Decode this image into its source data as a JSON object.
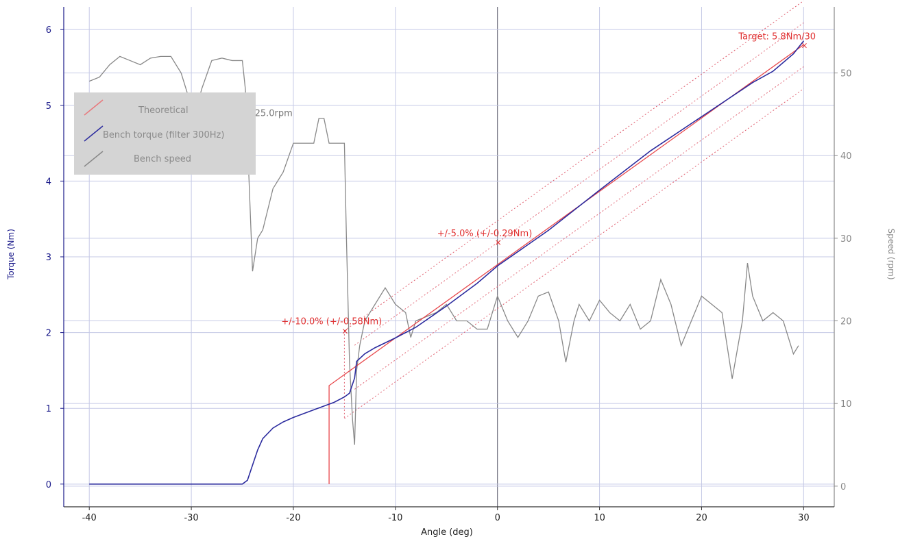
{
  "chart_data": {
    "type": "line",
    "xlabel": "Angle (deg)",
    "ylabel_left": "Torque (Nm)",
    "ylabel_right": "Speed (rpm)",
    "xlim": [
      -42.5,
      33
    ],
    "ylim_left": [
      -0.3,
      6.3
    ],
    "ylim_right": [
      -2.5,
      58
    ],
    "x_ticks": [
      -40,
      -30,
      -20,
      -10,
      0,
      10,
      20,
      30
    ],
    "y_ticks_left": [
      0,
      1,
      2,
      3,
      4,
      5,
      6
    ],
    "y_ticks_right": [
      0,
      10,
      20,
      30,
      40,
      50
    ],
    "grid": true,
    "legend": {
      "placement": "top-left",
      "entries": [
        {
          "name": "Theoretical",
          "color": "#e8787c"
        },
        {
          "name": "Bench torque (filter 300Hz)",
          "color": "#2b2b9e"
        },
        {
          "name": "Bench speed",
          "color": "#888888"
        }
      ]
    },
    "colors": {
      "torque_axis": "#1a1a8a",
      "speed_axis": "#888888",
      "annotation": "#e03030",
      "grid": "#c5c9e6"
    },
    "annotations": [
      {
        "text": "Target: 5.8Nm/30",
        "x": 30,
        "y": 5.8,
        "axis": "left"
      },
      {
        "text": "+/-5.0% (+/-0.29Nm)",
        "x": 0,
        "y": 3.2,
        "axis": "left"
      },
      {
        "text": "+/-10.0% (+/-0.58Nm)",
        "x": -15,
        "y": 2.03,
        "axis": "left"
      },
      {
        "text": "Speeds: 50.0rpm/25.0rpm",
        "x": -24.5,
        "y": 4.83,
        "axis": "left"
      }
    ],
    "series": [
      {
        "name": "Theoretical",
        "axis": "left",
        "points": [
          [
            -16.5,
            0
          ],
          [
            -16.5,
            1.28
          ],
          [
            -16.5,
            1.3
          ],
          [
            30,
            5.8
          ]
        ]
      },
      {
        "name": "Bench torque (filter 300Hz)",
        "axis": "left",
        "points": [
          [
            -40,
            0
          ],
          [
            -25,
            0
          ],
          [
            -24.5,
            0.05
          ],
          [
            -24,
            0.25
          ],
          [
            -23.5,
            0.45
          ],
          [
            -23,
            0.6
          ],
          [
            -22,
            0.74
          ],
          [
            -21,
            0.82
          ],
          [
            -20,
            0.88
          ],
          [
            -18,
            0.98
          ],
          [
            -16,
            1.08
          ],
          [
            -15,
            1.15
          ],
          [
            -14.5,
            1.2
          ],
          [
            -14,
            1.4
          ],
          [
            -13.8,
            1.62
          ],
          [
            -13,
            1.72
          ],
          [
            -12,
            1.8
          ],
          [
            -10,
            1.93
          ],
          [
            -8,
            2.07
          ],
          [
            -5,
            2.35
          ],
          [
            -2,
            2.65
          ],
          [
            0,
            2.88
          ],
          [
            5,
            3.35
          ],
          [
            10,
            3.88
          ],
          [
            15,
            4.4
          ],
          [
            20,
            4.85
          ],
          [
            25,
            5.3
          ],
          [
            27,
            5.45
          ],
          [
            29,
            5.68
          ],
          [
            30,
            5.85
          ]
        ]
      },
      {
        "name": "Bench speed",
        "axis": "right",
        "points": [
          [
            -40,
            49
          ],
          [
            -39,
            49.5
          ],
          [
            -38,
            51
          ],
          [
            -37,
            52
          ],
          [
            -36,
            51.5
          ],
          [
            -35,
            51
          ],
          [
            -34,
            51.8
          ],
          [
            -33,
            52
          ],
          [
            -32,
            52
          ],
          [
            -31,
            50
          ],
          [
            -30,
            46
          ],
          [
            -29.5,
            45.5
          ],
          [
            -29,
            48
          ],
          [
            -28,
            51.5
          ],
          [
            -27,
            51.8
          ],
          [
            -26,
            51.5
          ],
          [
            -25,
            51.5
          ],
          [
            -24.7,
            48
          ],
          [
            -24.5,
            42
          ],
          [
            -24,
            26
          ],
          [
            -23.5,
            30
          ],
          [
            -23,
            31
          ],
          [
            -22,
            36
          ],
          [
            -21,
            38
          ],
          [
            -20,
            41.5
          ],
          [
            -19,
            41.5
          ],
          [
            -18,
            41.5
          ],
          [
            -17.5,
            44.5
          ],
          [
            -17,
            44.5
          ],
          [
            -16.5,
            41.5
          ],
          [
            -15,
            41.5
          ],
          [
            -14.8,
            30
          ],
          [
            -14.5,
            15
          ],
          [
            -14.2,
            8
          ],
          [
            -14,
            5
          ],
          [
            -13.8,
            14
          ],
          [
            -13.5,
            17
          ],
          [
            -13,
            20
          ],
          [
            -12,
            22
          ],
          [
            -11,
            24
          ],
          [
            -10,
            22
          ],
          [
            -9,
            21
          ],
          [
            -8.5,
            18
          ],
          [
            -8,
            20
          ],
          [
            -7,
            20.5
          ],
          [
            -6,
            21
          ],
          [
            -5,
            22
          ],
          [
            -4,
            20
          ],
          [
            -3,
            20
          ],
          [
            -2,
            19
          ],
          [
            -1,
            19
          ],
          [
            0,
            23
          ],
          [
            1,
            20
          ],
          [
            2,
            18
          ],
          [
            3,
            20
          ],
          [
            4,
            23
          ],
          [
            5,
            23.5
          ],
          [
            6,
            20
          ],
          [
            6.7,
            15
          ],
          [
            7.5,
            20
          ],
          [
            8,
            22
          ],
          [
            9,
            20
          ],
          [
            10,
            22.5
          ],
          [
            11,
            21
          ],
          [
            12,
            20
          ],
          [
            13,
            22
          ],
          [
            14,
            19
          ],
          [
            15,
            20
          ],
          [
            16,
            25
          ],
          [
            17,
            22
          ],
          [
            18,
            17
          ],
          [
            19,
            20
          ],
          [
            20,
            23
          ],
          [
            21,
            22
          ],
          [
            22,
            21
          ],
          [
            23,
            13
          ],
          [
            24,
            20
          ],
          [
            24.5,
            27
          ],
          [
            25,
            23
          ],
          [
            26,
            20
          ],
          [
            27,
            21
          ],
          [
            28,
            20
          ],
          [
            29,
            16
          ],
          [
            29.5,
            17
          ]
        ]
      }
    ]
  }
}
